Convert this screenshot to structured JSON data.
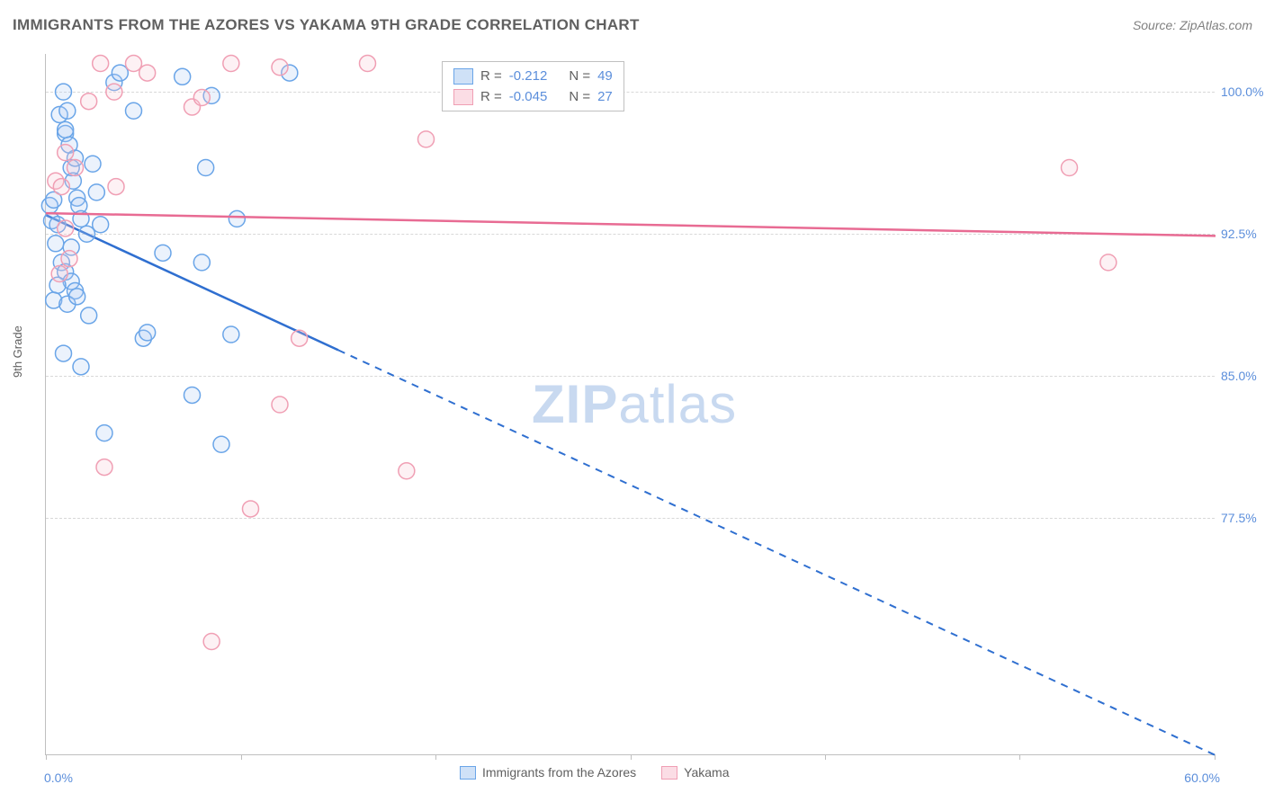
{
  "title": "IMMIGRANTS FROM THE AZORES VS YAKAMA 9TH GRADE CORRELATION CHART",
  "source": "Source: ZipAtlas.com",
  "watermark_a": "ZIP",
  "watermark_b": "atlas",
  "ylabel": "9th Grade",
  "chart": {
    "type": "scatter+regression",
    "background": "#ffffff",
    "grid_color": "#d8d8d8",
    "axis_color": "#bfbfbf",
    "xlim": [
      0,
      60
    ],
    "ylim": [
      65,
      102
    ],
    "x_ticks": [
      0,
      10,
      20,
      30,
      40,
      50,
      60
    ],
    "x_tick_labels": {
      "0": "0.0%",
      "60": "60.0%"
    },
    "y_gridlines": [
      77.5,
      85.0,
      92.5,
      100.0
    ],
    "y_tick_labels": [
      "77.5%",
      "85.0%",
      "92.5%",
      "100.0%"
    ],
    "marker_radius": 9,
    "marker_fill_opacity": 0.25,
    "series": [
      {
        "name": "Immigrants from the Azores",
        "color_stroke": "#6aa5e8",
        "color_fill": "#aecdf2",
        "line_color": "#2f6fd0",
        "R": "-0.212",
        "N": "49",
        "regression": {
          "x0": 0,
          "y0": 93.5,
          "x1": 60,
          "y1": 65.0,
          "solid_until_x": 15
        },
        "points": [
          [
            0.2,
            94.0
          ],
          [
            0.3,
            93.2
          ],
          [
            0.4,
            94.3
          ],
          [
            0.6,
            93.0
          ],
          [
            0.5,
            92.0
          ],
          [
            0.7,
            98.8
          ],
          [
            0.9,
            100.0
          ],
          [
            1.0,
            97.8
          ],
          [
            1.0,
            98.0
          ],
          [
            1.1,
            99.0
          ],
          [
            1.2,
            97.2
          ],
          [
            1.3,
            96.0
          ],
          [
            1.4,
            95.3
          ],
          [
            1.5,
            96.5
          ],
          [
            1.6,
            94.4
          ],
          [
            1.7,
            94.0
          ],
          [
            1.8,
            93.3
          ],
          [
            0.8,
            91.0
          ],
          [
            1.0,
            90.5
          ],
          [
            1.3,
            90.0
          ],
          [
            1.5,
            89.5
          ],
          [
            0.6,
            89.8
          ],
          [
            0.4,
            89.0
          ],
          [
            1.1,
            88.8
          ],
          [
            1.6,
            89.2
          ],
          [
            1.3,
            91.8
          ],
          [
            2.1,
            92.5
          ],
          [
            2.4,
            96.2
          ],
          [
            2.6,
            94.7
          ],
          [
            2.8,
            93.0
          ],
          [
            3.5,
            100.5
          ],
          [
            3.8,
            101.0
          ],
          [
            4.5,
            99.0
          ],
          [
            5.0,
            87.0
          ],
          [
            5.2,
            87.3
          ],
          [
            6.0,
            91.5
          ],
          [
            7.0,
            100.8
          ],
          [
            8.0,
            91.0
          ],
          [
            8.2,
            96.0
          ],
          [
            8.5,
            99.8
          ],
          [
            9.5,
            87.2
          ],
          [
            9.8,
            93.3
          ],
          [
            1.8,
            85.5
          ],
          [
            2.2,
            88.2
          ],
          [
            0.9,
            86.2
          ],
          [
            3.0,
            82.0
          ],
          [
            7.5,
            84.0
          ],
          [
            9.0,
            81.4
          ],
          [
            12.5,
            101.0
          ]
        ]
      },
      {
        "name": "Yakama",
        "color_stroke": "#f09fb4",
        "color_fill": "#f7c6d3",
        "line_color": "#e86b93",
        "R": "-0.045",
        "N": "27",
        "regression": {
          "x0": 0,
          "y0": 93.6,
          "x1": 60,
          "y1": 92.4,
          "solid_until_x": 60
        },
        "points": [
          [
            0.5,
            95.3
          ],
          [
            0.8,
            95.0
          ],
          [
            1.0,
            96.8
          ],
          [
            1.5,
            96.0
          ],
          [
            1.0,
            92.8
          ],
          [
            2.2,
            99.5
          ],
          [
            2.8,
            101.5
          ],
          [
            3.5,
            100.0
          ],
          [
            3.6,
            95.0
          ],
          [
            4.5,
            101.5
          ],
          [
            5.2,
            101.0
          ],
          [
            7.5,
            99.2
          ],
          [
            8.0,
            99.7
          ],
          [
            9.5,
            101.5
          ],
          [
            12.0,
            101.3
          ],
          [
            16.5,
            101.5
          ],
          [
            19.5,
            97.5
          ],
          [
            13.0,
            87.0
          ],
          [
            12.0,
            83.5
          ],
          [
            10.5,
            78.0
          ],
          [
            18.5,
            80.0
          ],
          [
            8.5,
            71.0
          ],
          [
            3.0,
            80.2
          ],
          [
            0.7,
            90.4
          ],
          [
            1.2,
            91.2
          ],
          [
            54.5,
            91.0
          ],
          [
            52.5,
            96.0
          ]
        ]
      }
    ],
    "legend_top_template": {
      "R_prefix": "R =",
      "N_prefix": "N ="
    }
  }
}
